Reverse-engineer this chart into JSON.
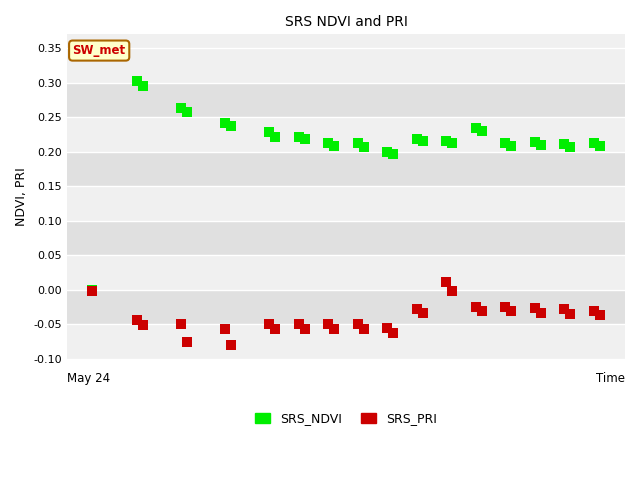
{
  "title": "SRS NDVI and PRI",
  "ylabel": "NDVI, PRI",
  "xlabel": "Time",
  "xlabel_start": "May 24",
  "ylim": [
    -0.1,
    0.37
  ],
  "yticks": [
    -0.1,
    -0.05,
    0.0,
    0.05,
    0.1,
    0.15,
    0.2,
    0.25,
    0.3,
    0.35
  ],
  "fig_bg": "#ffffff",
  "plot_bg_light": "#f0f0f0",
  "plot_bg_dark": "#e0e0e0",
  "grid_color": "#d8d8d8",
  "annotation_text": "SW_met",
  "annotation_color": "#cc0000",
  "annotation_bg": "#ffffcc",
  "annotation_border": "#aa6600",
  "ndvi_color": "#00ee00",
  "pri_color": "#cc0000",
  "marker_size": 55,
  "ndvi_x": [
    0.5,
    2.0,
    2.2,
    3.5,
    3.7,
    5.0,
    5.2,
    6.5,
    6.7,
    7.5,
    7.7,
    8.5,
    8.7,
    9.5,
    9.7,
    10.5,
    10.7,
    11.5,
    11.7,
    12.5,
    12.7,
    13.5,
    13.7,
    14.5,
    14.7,
    15.5,
    15.7,
    16.5,
    16.7,
    17.5,
    17.7
  ],
  "ndvi_y": [
    0.0,
    0.302,
    0.295,
    0.263,
    0.257,
    0.241,
    0.237,
    0.228,
    0.222,
    0.222,
    0.218,
    0.213,
    0.208,
    0.212,
    0.207,
    0.2,
    0.197,
    0.218,
    0.215,
    0.215,
    0.212,
    0.235,
    0.23,
    0.213,
    0.209,
    0.214,
    0.21,
    0.211,
    0.207,
    0.212,
    0.208
  ],
  "pri_x": [
    0.5,
    2.0,
    2.2,
    3.5,
    3.7,
    5.0,
    5.2,
    6.5,
    6.7,
    7.5,
    7.7,
    8.5,
    8.7,
    9.5,
    9.7,
    10.5,
    10.7,
    11.5,
    11.7,
    12.5,
    12.7,
    13.5,
    13.7,
    14.5,
    14.7,
    15.5,
    15.7,
    16.5,
    16.7,
    17.5,
    17.7
  ],
  "pri_y": [
    -0.002,
    -0.044,
    -0.051,
    -0.05,
    -0.076,
    -0.056,
    -0.08,
    -0.05,
    -0.056,
    -0.05,
    -0.056,
    -0.05,
    -0.056,
    -0.05,
    -0.057,
    -0.055,
    -0.062,
    -0.028,
    -0.033,
    0.012,
    -0.002,
    -0.025,
    -0.031,
    -0.025,
    -0.031,
    -0.027,
    -0.034,
    -0.028,
    -0.035,
    -0.03,
    -0.036
  ]
}
